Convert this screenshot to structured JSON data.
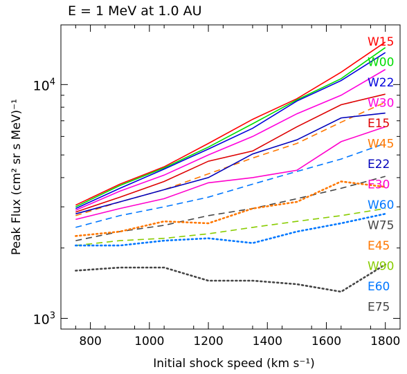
{
  "chart_data": {
    "type": "line",
    "title": "E = 1 MeV at 1.0 AU",
    "xlabel": "Initial shock speed (km s⁻¹)",
    "ylabel": "Peak Flux (cm² sr s MeV)⁻¹",
    "xlim": [
      700,
      1850
    ],
    "ylim": [
      900,
      18000
    ],
    "yscale": "log",
    "x_ticks": [
      800,
      1000,
      1200,
      1400,
      1600,
      1800
    ],
    "y_tick_labels": [
      {
        "value": 1000,
        "base": "10",
        "exp": "3"
      },
      {
        "value": 10000,
        "base": "10",
        "exp": "4"
      }
    ],
    "legend_placement": "right",
    "x": [
      750,
      900,
      1050,
      1200,
      1350,
      1500,
      1650,
      1800
    ],
    "series": [
      {
        "name": "W15",
        "color": "#ff0000",
        "style": "solid",
        "values": [
          3050,
          3750,
          4450,
          5600,
          7100,
          8700,
          11300,
          15200
        ]
      },
      {
        "name": "W00",
        "color": "#00dd00",
        "style": "solid",
        "values": [
          3000,
          3700,
          4400,
          5400,
          6800,
          8600,
          10600,
          14400
        ]
      },
      {
        "name": "W22",
        "color": "#0000dd",
        "style": "solid",
        "values": [
          2950,
          3600,
          4350,
          5300,
          6500,
          8500,
          10400,
          13700
        ]
      },
      {
        "name": "W30",
        "color": "#ff00dd",
        "style": "solid",
        "values": [
          2900,
          3500,
          4100,
          5000,
          6000,
          7500,
          9000,
          11600
        ]
      },
      {
        "name": "E15",
        "color": "#dd0000",
        "style": "solid",
        "values": [
          2850,
          3300,
          3850,
          4700,
          5200,
          6600,
          8200,
          9100
        ]
      },
      {
        "name": "W45",
        "color": "#ff7700",
        "style": "dashed",
        "values": [
          2750,
          3150,
          3550,
          4150,
          4850,
          5600,
          6900,
          8400
        ]
      },
      {
        "name": "E22",
        "color": "#0000bb",
        "style": "solid",
        "values": [
          2800,
          3150,
          3550,
          4000,
          5050,
          5800,
          7200,
          7550
        ]
      },
      {
        "name": "E30",
        "color": "#ff00cc",
        "style": "solid",
        "values": [
          2650,
          2950,
          3250,
          3800,
          4000,
          4300,
          5700,
          6600
        ]
      },
      {
        "name": "W60",
        "color": "#0077ff",
        "style": "dashed",
        "values": [
          2450,
          2750,
          3000,
          3300,
          3750,
          4250,
          4800,
          5600
        ]
      },
      {
        "name": "W75",
        "color": "#444444",
        "style": "dashed",
        "values": [
          2150,
          2350,
          2500,
          2750,
          2950,
          3250,
          3600,
          4050
        ]
      },
      {
        "name": "E45",
        "color": "#ff7700",
        "style": "dotted",
        "values": [
          2250,
          2350,
          2600,
          2550,
          2950,
          3150,
          3850,
          3650
        ]
      },
      {
        "name": "W90",
        "color": "#88cc00",
        "style": "dashed",
        "values": [
          2050,
          2150,
          2200,
          2300,
          2450,
          2600,
          2750,
          2950
        ]
      },
      {
        "name": "E60",
        "color": "#0077ff",
        "style": "dotted",
        "values": [
          2050,
          2050,
          2150,
          2200,
          2100,
          2350,
          2550,
          2800
        ]
      },
      {
        "name": "E75",
        "color": "#444444",
        "style": "dotted",
        "values": [
          1600,
          1650,
          1650,
          1450,
          1450,
          1400,
          1300,
          1700
        ]
      }
    ]
  }
}
